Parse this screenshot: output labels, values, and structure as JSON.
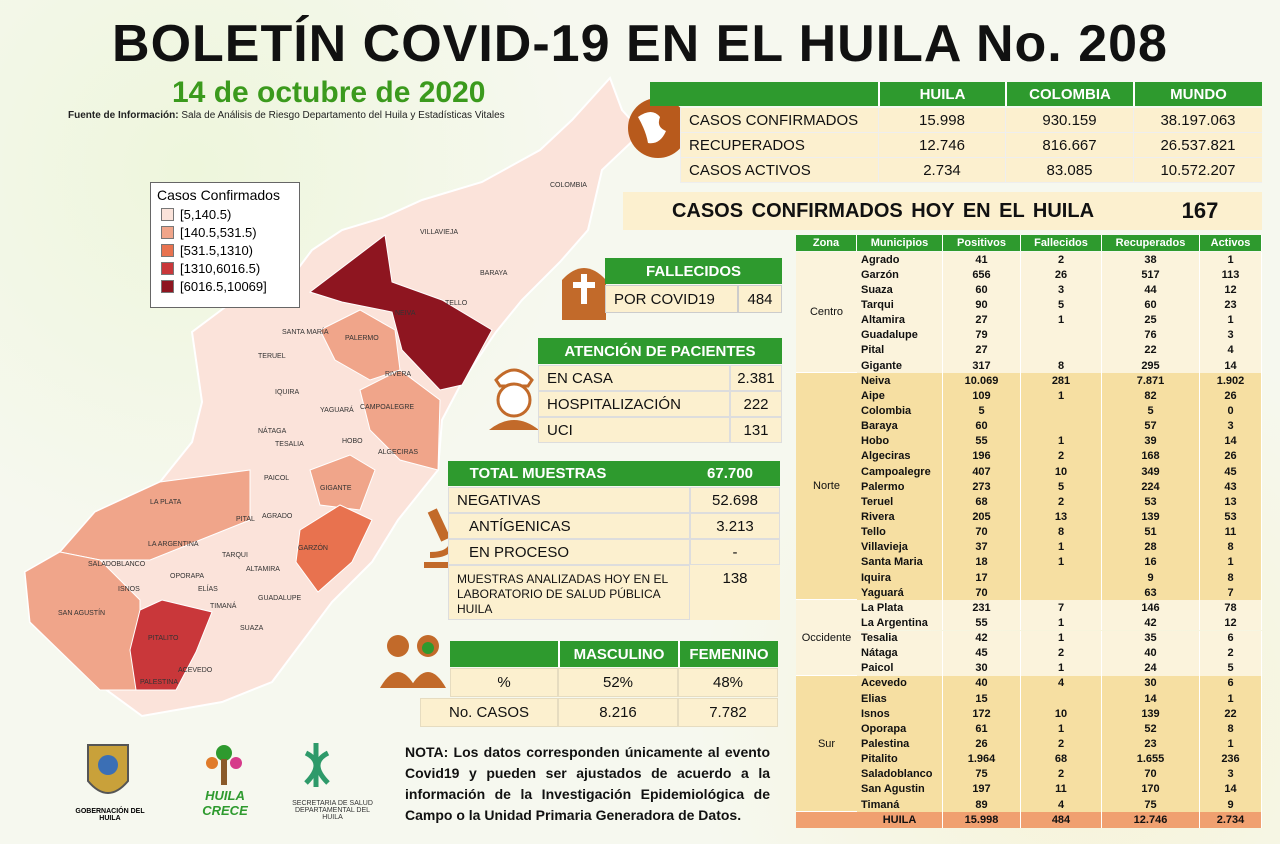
{
  "header": {
    "title": "BOLETÍN COVID-19 EN EL HUILA No. 208",
    "date": "14 de octubre de 2020",
    "source_label": "Fuente de Información:",
    "source": "Sala de Análisis de Riesgo Departamento del Huila y Estadísticas Vitales"
  },
  "legend": {
    "title": "Casos Confirmados",
    "items": [
      {
        "label": "[5,140.5)",
        "color": "#fbe3da"
      },
      {
        "label": "[140.5,531.5)",
        "color": "#f0a58a"
      },
      {
        "label": "[531.5,1310)",
        "color": "#e8724f"
      },
      {
        "label": "[1310,6016.5)",
        "color": "#c9373a"
      },
      {
        "label": "[6016.5,10069]",
        "color": "#8e1520"
      }
    ]
  },
  "map": {
    "labels": [
      "COLOMBIA",
      "VILLAVIEJA",
      "BARAYA",
      "TELLO",
      "NEIVA",
      "SANTA MARÍA",
      "PALERMO",
      "TERUEL",
      "RIVERA",
      "IQUIRA",
      "YAGUARÁ",
      "CAMPOALEGRE",
      "NÁTAGA",
      "TESALIA",
      "HOBO",
      "ALGECIRAS",
      "PAICOL",
      "GIGANTE",
      "LA PLATA",
      "PITAL",
      "AGRADO",
      "LA ARGENTINA",
      "GARZÓN",
      "TARQUI",
      "SALADOBLANCO",
      "OPORAPA",
      "ALTAMIRA",
      "ISNOS",
      "ELÍAS",
      "SAN AGUSTÍN",
      "TIMANÁ",
      "GUADALUPE",
      "PITALITO",
      "SUAZA",
      "ACEVEDO",
      "PALESTINA"
    ]
  },
  "summary": {
    "headers": [
      "HUILA",
      "COLOMBIA",
      "MUNDO"
    ],
    "rows": [
      [
        "CASOS CONFIRMADOS",
        "15.998",
        "930.159",
        "38.197.063"
      ],
      [
        "RECUPERADOS",
        "12.746",
        "816.667",
        "26.537.821"
      ],
      [
        "CASOS ACTIVOS",
        "2.734",
        "83.085",
        "10.572.207"
      ]
    ]
  },
  "today": {
    "label": "CASOS CONFIRMADOS HOY EN EL HUILA",
    "value": "167"
  },
  "deaths": {
    "title": "FALLECIDOS",
    "label": "POR COVID19",
    "value": "484"
  },
  "attention": {
    "title": "ATENCIÓN DE PACIENTES",
    "rows": [
      [
        "EN CASA",
        "2.381"
      ],
      [
        "HOSPITALIZACIÓN",
        "222"
      ],
      [
        "UCI",
        "131"
      ]
    ]
  },
  "samples": {
    "title": "TOTAL MUESTRAS",
    "total": "67.700",
    "rows": [
      [
        "NEGATIVAS",
        "52.698"
      ],
      [
        "ANTÍGENICAS",
        "3.213"
      ],
      [
        "EN PROCESO",
        "-"
      ]
    ],
    "lab_label": "MUESTRAS ANALIZADAS HOY EN EL LABORATORIO DE SALUD PÚBLICA HUILA",
    "lab_value": "138"
  },
  "sex": {
    "headers": [
      "MASCULINO",
      "FEMENINO"
    ],
    "rows": [
      [
        "%",
        "52%",
        "48%"
      ],
      [
        "No. CASOS",
        "8.216",
        "7.782"
      ]
    ]
  },
  "note": "NOTA: Los datos corresponden únicamente al evento Covid19 y pueden ser ajustados de acuerdo a la información de la Investigación Epidemiológica de Campo o la Unidad Primaria Generadora de Datos.",
  "logos": [
    "GOBERNACIÓN DEL HUILA",
    "HUILA CRECE",
    "SECRETARIA DE SALUD DEPARTAMENTAL DEL HUILA"
  ],
  "municipal": {
    "headers": [
      "Zona",
      "Municipios",
      "Positivos",
      "Fallecidos",
      "Recuperados",
      "Activos"
    ],
    "zones": [
      {
        "name": "Centro",
        "rows": [
          [
            "Agrado",
            "41",
            "2",
            "38",
            "1"
          ],
          [
            "Garzón",
            "656",
            "26",
            "517",
            "113"
          ],
          [
            "Suaza",
            "60",
            "3",
            "44",
            "12"
          ],
          [
            "Tarqui",
            "90",
            "5",
            "60",
            "23"
          ],
          [
            "Altamira",
            "27",
            "1",
            "25",
            "1"
          ],
          [
            "Guadalupe",
            "79",
            null,
            "76",
            "3"
          ],
          [
            "Pital",
            "27",
            null,
            "22",
            "4"
          ],
          [
            "Gigante",
            "317",
            "8",
            "295",
            "14"
          ]
        ]
      },
      {
        "name": "Norte",
        "rows": [
          [
            "Neiva",
            "10.069",
            "281",
            "7.871",
            "1.902"
          ],
          [
            "Aipe",
            "109",
            "1",
            "82",
            "26"
          ],
          [
            "Colombia",
            "5",
            null,
            "5",
            "0"
          ],
          [
            "Baraya",
            "60",
            null,
            "57",
            "3"
          ],
          [
            "Hobo",
            "55",
            "1",
            "39",
            "14"
          ],
          [
            "Algeciras",
            "196",
            "2",
            "168",
            "26"
          ],
          [
            "Campoalegre",
            "407",
            "10",
            "349",
            "45"
          ],
          [
            "Palermo",
            "273",
            "5",
            "224",
            "43"
          ],
          [
            "Teruel",
            "68",
            "2",
            "53",
            "13"
          ],
          [
            "Rivera",
            "205",
            "13",
            "139",
            "53"
          ],
          [
            "Tello",
            "70",
            "8",
            "51",
            "11"
          ],
          [
            "Villavieja",
            "37",
            "1",
            "28",
            "8"
          ],
          [
            "Santa Maria",
            "18",
            "1",
            "16",
            "1"
          ],
          [
            "Iquira",
            "17",
            null,
            "9",
            "8"
          ],
          [
            "Yaguará",
            "70",
            null,
            "63",
            "7"
          ]
        ]
      },
      {
        "name": "Occidente",
        "rows": [
          [
            "La Plata",
            "231",
            "7",
            "146",
            "78"
          ],
          [
            "La Argentina",
            "55",
            "1",
            "42",
            "12"
          ],
          [
            "Tesalia",
            "42",
            "1",
            "35",
            "6"
          ],
          [
            "Nátaga",
            "45",
            "2",
            "40",
            "2"
          ],
          [
            "Paicol",
            "30",
            "1",
            "24",
            "5"
          ]
        ]
      },
      {
        "name": "Sur",
        "rows": [
          [
            "Acevedo",
            "40",
            "4",
            "30",
            "6"
          ],
          [
            "Elias",
            "15",
            null,
            "14",
            "1"
          ],
          [
            "Isnos",
            "172",
            "10",
            "139",
            "22"
          ],
          [
            "Oporapa",
            "61",
            "1",
            "52",
            "8"
          ],
          [
            "Palestina",
            "26",
            "2",
            "23",
            "1"
          ],
          [
            "Pitalito",
            "1.964",
            "68",
            "1.655",
            "236"
          ],
          [
            "Saladoblanco",
            "75",
            "2",
            "70",
            "3"
          ],
          [
            "San Agustin",
            "197",
            "11",
            "170",
            "14"
          ],
          [
            "Timaná",
            "89",
            "4",
            "75",
            "9"
          ]
        ]
      }
    ],
    "total": [
      "HUILA",
      "15.998",
      "484",
      "12.746",
      "2.734"
    ]
  }
}
